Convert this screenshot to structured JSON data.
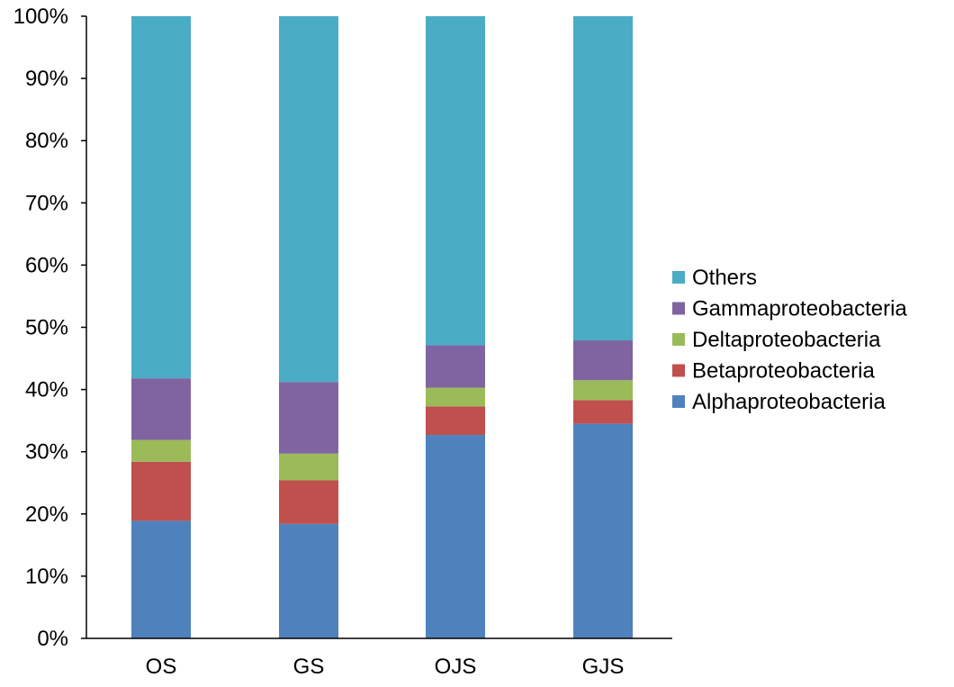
{
  "chart_data": {
    "type": "bar",
    "stacked": true,
    "percent_stacked": true,
    "categories": [
      "OS",
      "GS",
      "OJS",
      "GJS"
    ],
    "series": [
      {
        "name": "Alphaproteobacteria",
        "color": "#4F81BD",
        "values": [
          18.9,
          18.4,
          32.7,
          34.5
        ]
      },
      {
        "name": "Betaproteobacteria",
        "color": "#C0504D",
        "values": [
          9.5,
          7.0,
          4.6,
          3.8
        ]
      },
      {
        "name": "Deltaproteobacteria",
        "color": "#9BBB59",
        "values": [
          3.5,
          4.3,
          3.0,
          3.2
        ]
      },
      {
        "name": "Gammaproteobacteria",
        "color": "#8064A2",
        "values": [
          9.9,
          11.5,
          6.8,
          6.4
        ]
      },
      {
        "name": "Others",
        "color": "#4BACC6",
        "values": [
          58.2,
          58.8,
          52.9,
          52.1
        ]
      }
    ],
    "y_ticks": [
      "0%",
      "10%",
      "20%",
      "30%",
      "40%",
      "50%",
      "60%",
      "70%",
      "80%",
      "90%",
      "100%"
    ],
    "ylim": [
      0,
      100
    ],
    "title": "",
    "xlabel": "",
    "ylabel": "",
    "grid": false,
    "legend_position": "right",
    "legend_order": [
      "Others",
      "Gammaproteobacteria",
      "Deltaproteobacteria",
      "Betaproteobacteria",
      "Alphaproteobacteria"
    ]
  }
}
